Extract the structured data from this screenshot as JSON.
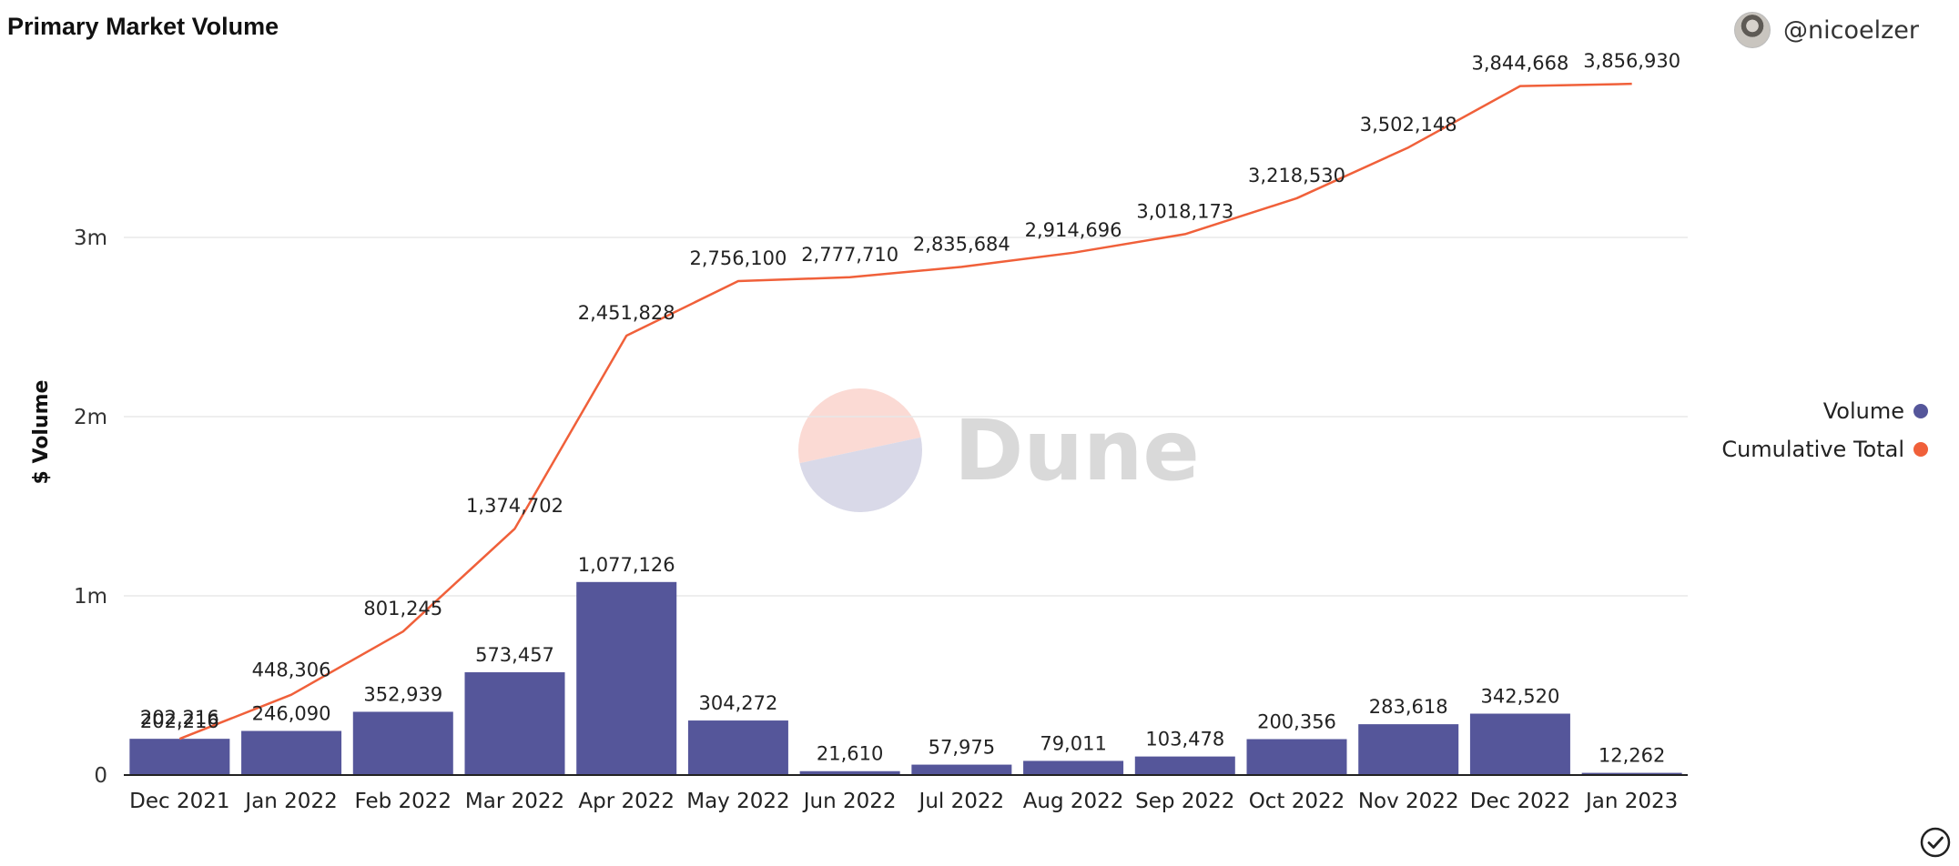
{
  "header": {
    "title": "Primary Market Volume",
    "author": "@nicoelzer"
  },
  "watermark": {
    "text": "Dune"
  },
  "colors": {
    "volume": "#55569a",
    "cumulative": "#f0603a",
    "grid": "#e8e8e8",
    "axis": "#222222"
  },
  "legend": {
    "items": [
      {
        "label": "Volume",
        "color": "#55569a"
      },
      {
        "label": "Cumulative Total",
        "color": "#f0603a"
      }
    ],
    "position": "right"
  },
  "chart_data": {
    "type": "bar",
    "title": "Primary Market Volume",
    "xlabel": "",
    "ylabel": "$ Volume",
    "ylim": [
      0,
      4100000
    ],
    "yticks": [
      0,
      1000000,
      2000000,
      3000000
    ],
    "ytick_labels": [
      "0",
      "1m",
      "2m",
      "3m"
    ],
    "grid": true,
    "categories": [
      "Dec 2021",
      "Jan 2022",
      "Feb 2022",
      "Mar 2022",
      "Apr 2022",
      "May 2022",
      "Jun 2022",
      "Jul 2022",
      "Aug 2022",
      "Sep 2022",
      "Oct 2022",
      "Nov 2022",
      "Dec 2022",
      "Jan 2023"
    ],
    "series": [
      {
        "name": "Volume",
        "type": "bar",
        "values": [
          202216,
          246090,
          352939,
          573457,
          1077126,
          304272,
          21610,
          57975,
          79011,
          103478,
          200356,
          283618,
          342520,
          12262
        ],
        "labels": [
          "202,216",
          "246,090",
          "352,939",
          "573,457",
          "1,077,126",
          "304,272",
          "21,610",
          "57,975",
          "79,011",
          "103,478",
          "200,356",
          "283,618",
          "342,520",
          "12,262"
        ]
      },
      {
        "name": "Cumulative Total",
        "type": "line",
        "values": [
          202216,
          448306,
          801245,
          1374702,
          2451828,
          2756100,
          2777710,
          2835684,
          2914696,
          3018173,
          3218530,
          3502148,
          3844668,
          3856930
        ],
        "labels": [
          "202,216",
          "448,306",
          "801,245",
          "1,374,702",
          "2,451,828",
          "2,756,100",
          "2,777,710",
          "2,835,684",
          "2,914,696",
          "3,018,173",
          "3,218,530",
          "3,502,148",
          "3,844,668",
          "3,856,930"
        ]
      }
    ]
  }
}
